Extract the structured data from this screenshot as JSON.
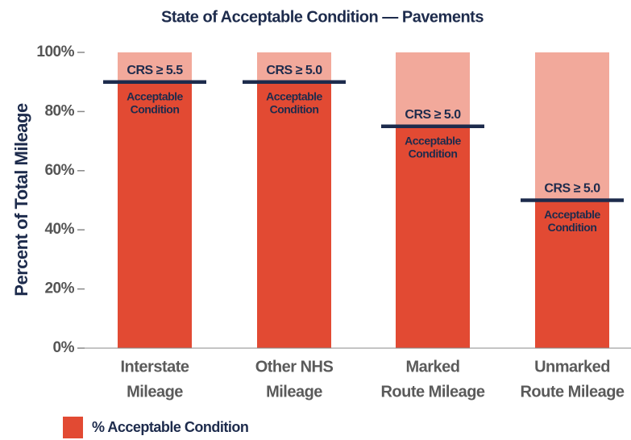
{
  "chart_data": {
    "type": "bar",
    "title": "State of Acceptable Condition — Pavements",
    "y_label": "Percent of Total Mileage",
    "categories": [
      [
        "Interstate",
        "Mileage"
      ],
      [
        "Other NHS",
        "Mileage"
      ],
      [
        "Marked",
        "Route Mileage"
      ],
      [
        "Unmarked",
        "Route Mileage"
      ]
    ],
    "series": [
      {
        "name": "% Acceptable Condition",
        "color": "#e24a33",
        "values": [
          90,
          90,
          75,
          50
        ]
      }
    ],
    "background_color": "#f2a99b",
    "annotations": [
      {
        "label": "CRS ≥ 5.5",
        "text": [
          "Acceptable",
          "Condition"
        ]
      },
      {
        "label": "CRS ≥ 5.0",
        "text": [
          "Acceptable",
          "Condition"
        ]
      },
      {
        "label": "CRS ≥ 5.0",
        "text": [
          "Acceptable",
          "Condition"
        ]
      },
      {
        "label": "CRS ≥ 5.0",
        "text": [
          "Acceptable",
          "Condition"
        ]
      }
    ],
    "ylim": [
      0,
      100
    ],
    "yticks": [
      {
        "value": 0,
        "label": "0%"
      },
      {
        "value": 20,
        "label": "20%"
      },
      {
        "value": 40,
        "label": "40%"
      },
      {
        "value": 60,
        "label": "60%"
      },
      {
        "value": 80,
        "label": "80%"
      },
      {
        "value": 100,
        "label": "100%"
      }
    ],
    "legend": "bottom-left"
  }
}
